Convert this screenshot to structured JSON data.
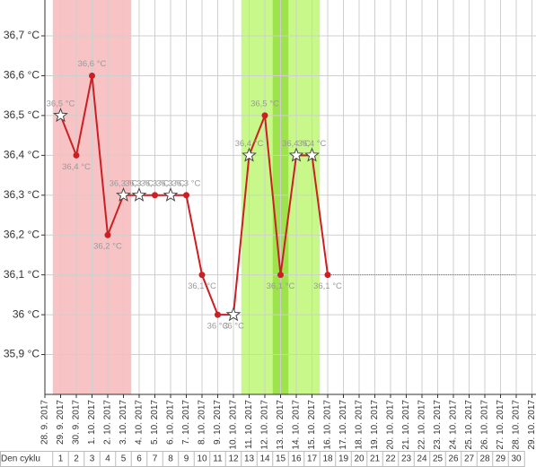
{
  "chart_data": {
    "type": "line",
    "categories": [
      "28. 9. 2017",
      "29. 9. 2017",
      "30. 9. 2017",
      "1. 10. 2017",
      "2. 10. 2017",
      "3. 10. 2017",
      "4. 10. 2017",
      "5. 10. 2017",
      "6. 10. 2017",
      "7. 10. 2017",
      "8. 10. 2017",
      "9. 10. 2017",
      "10. 10. 2017",
      "11. 10. 2017",
      "12. 10. 2017",
      "13. 10. 2017",
      "14. 10. 2017",
      "15. 10. 2017",
      "16. 10. 2017",
      "17. 10. 2017",
      "18. 10. 2017",
      "19. 10. 2017",
      "20. 10. 2017",
      "21. 10. 2017",
      "22. 10. 2017",
      "23. 10. 2017",
      "24. 10. 2017",
      "25. 10. 2017",
      "26. 10. 2017",
      "27. 10. 2017",
      "28. 10. 2017",
      "29. 10. 2017"
    ],
    "values": [
      null,
      36.5,
      36.4,
      36.6,
      36.2,
      36.3,
      36.3,
      36.3,
      36.3,
      36.3,
      36.1,
      36.0,
      36.0,
      36.4,
      36.5,
      36.1,
      36.4,
      36.4,
      36.1,
      null,
      null,
      null,
      null,
      null,
      null,
      null,
      null,
      null,
      null,
      null,
      null,
      null
    ],
    "value_labels": [
      null,
      "36,5 °C",
      "36,4 °C",
      "36,6 °C",
      "36,2 °C",
      "36,3 °C",
      "36,3 °C",
      "36,3 °C",
      "36,3 °C",
      "36,3 °C",
      "36,1 °C",
      "36 °C",
      "36 °C",
      "36,4 °C",
      "36,5 °C",
      "36,1 °C",
      "36,4 °C",
      "36,4 °C",
      "36,1 °C",
      null,
      null,
      null,
      null,
      null,
      null,
      null,
      null,
      null,
      null,
      null,
      null,
      null
    ],
    "markers": [
      null,
      "star",
      "circle",
      "circle",
      "circle",
      "star",
      "star",
      "circle",
      "star",
      "circle",
      "circle",
      "circle",
      "star",
      "star",
      "circle",
      "circle",
      "star",
      "star",
      "circle",
      null,
      null,
      null,
      null,
      null,
      null,
      null,
      null,
      null,
      null,
      null,
      null,
      null
    ],
    "color": "#cc1f24",
    "projection_end": 30,
    "bands": [
      {
        "start": 1,
        "end": 5,
        "color": "#f8c3c4"
      },
      {
        "start": 13,
        "end": 17,
        "color": "#c8f78a"
      },
      {
        "start": 15,
        "end": 15,
        "color": "#9ee24c"
      }
    ],
    "ylim": [
      35.8,
      36.79
    ],
    "yticks": [
      {
        "value": 35.9,
        "label": "35,9 °C"
      },
      {
        "value": 36.0,
        "label": "36 °C"
      },
      {
        "value": 36.1,
        "label": "36,1 °C"
      },
      {
        "value": 36.2,
        "label": "36,2 °C"
      },
      {
        "value": 36.3,
        "label": "36,3 °C"
      },
      {
        "value": 36.4,
        "label": "36,4 °C"
      },
      {
        "value": 36.5,
        "label": "36,5 °C"
      },
      {
        "value": 36.6,
        "label": "36,6 °C"
      },
      {
        "value": 36.7,
        "label": "36,7 °C"
      }
    ],
    "grid": true,
    "cycle_label": "Den cyklu",
    "cycle_days": [
      "1",
      "2",
      "3",
      "4",
      "5",
      "6",
      "7",
      "8",
      "9",
      "10",
      "11",
      "12",
      "13",
      "14",
      "15",
      "16",
      "17",
      "18",
      "19",
      "20",
      "21",
      "22",
      "23",
      "24",
      "25",
      "26",
      "27",
      "28",
      "29",
      "30"
    ]
  }
}
